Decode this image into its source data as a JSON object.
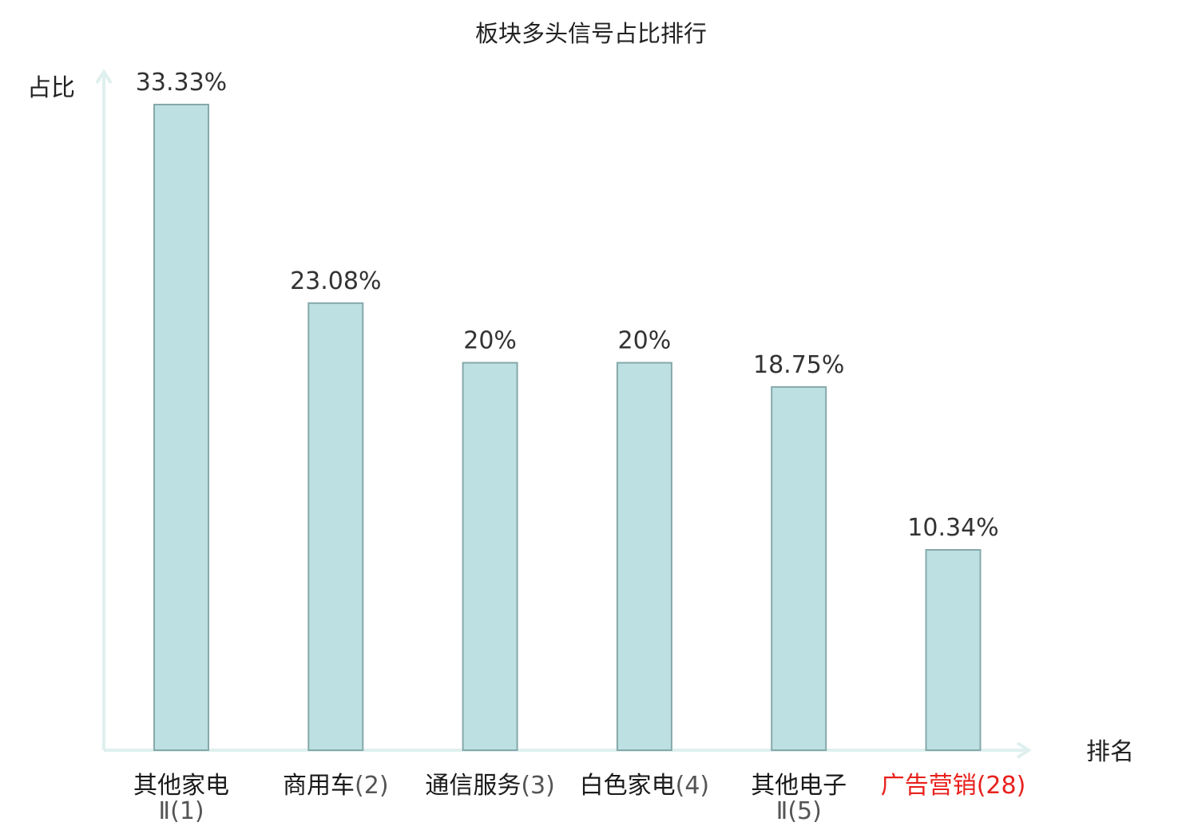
{
  "chart_data": {
    "type": "bar",
    "title": "板块多头信号占比排行",
    "ylabel": "占比",
    "xlabel": "排名",
    "ylim": [
      0,
      33.33
    ],
    "grid": false,
    "legend": false,
    "categories": [
      {
        "name": "其他家电",
        "rank_label": "Ⅱ(1)",
        "highlight": false
      },
      {
        "name": "商用车",
        "rank_label": "(2)",
        "highlight": false
      },
      {
        "name": "通信服务",
        "rank_label": "(3)",
        "highlight": false
      },
      {
        "name": "白色家电",
        "rank_label": "(4)",
        "highlight": false
      },
      {
        "name": "其他电子",
        "rank_label": "Ⅱ(5)",
        "highlight": false
      },
      {
        "name": "广告营销",
        "rank_label": "(28)",
        "highlight": true
      }
    ],
    "values": [
      33.33,
      23.08,
      20,
      20,
      18.75,
      10.34
    ],
    "value_labels": [
      "33.33%",
      "23.08%",
      "20%",
      "20%",
      "18.75%",
      "10.34%"
    ],
    "colors": {
      "bar_fill": "#bde0e2",
      "bar_stroke": "#86a8aa",
      "axis": "#dff0ee",
      "label_text": "#1a1a1a",
      "rank_text": "#555555",
      "highlight_text": "#e8211d"
    }
  }
}
